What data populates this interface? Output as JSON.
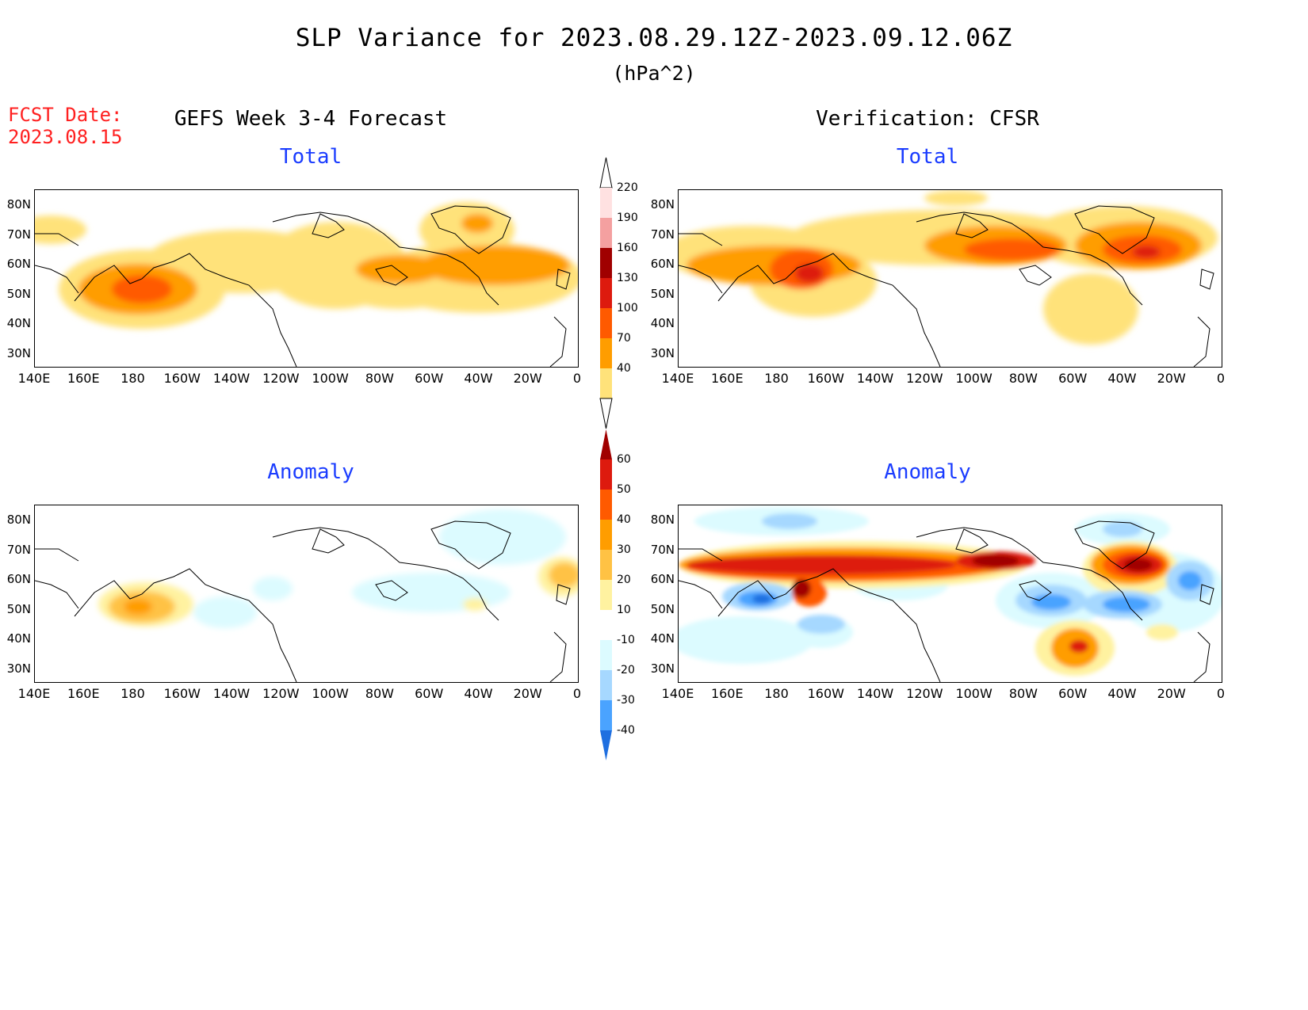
{
  "header": {
    "title": "SLP Variance for 2023.08.29.12Z-2023.09.12.06Z",
    "units": "(hPa^2)",
    "fcst_line1": "FCST Date:",
    "fcst_line2": "2023.08.15",
    "left_column_title": "GEFS Week 3-4 Forecast",
    "right_column_title": "Verification: CFSR"
  },
  "panels": {
    "forecast_total_title": "Total",
    "verification_total_title": "Total",
    "forecast_anomaly_title": "Anomaly",
    "verification_anomaly_title": "Anomaly"
  },
  "lat_labels": [
    "80N",
    "70N",
    "60N",
    "50N",
    "40N",
    "30N"
  ],
  "lon_labels": [
    "140E",
    "160E",
    "180",
    "160W",
    "140W",
    "120W",
    "100W",
    "80W",
    "60W",
    "40W",
    "20W",
    "0"
  ],
  "colorbars": {
    "total": {
      "labels": [
        "220",
        "190",
        "160",
        "130",
        "100",
        "70",
        "40"
      ],
      "colors": [
        "#ffe1e1",
        "#f4a0a0",
        "#a00000",
        "#dd1a0e",
        "#ff5a00",
        "#ff9d00",
        "#ffe27a"
      ]
    },
    "anomaly": {
      "labels": [
        "60",
        "50",
        "40",
        "30",
        "20",
        "10",
        "-10",
        "-20",
        "-30",
        "-40"
      ],
      "colors": [
        "#a00000",
        "#dd1a0e",
        "#ff5a00",
        "#ff9d00",
        "#ffc244",
        "#fff2a0",
        "#ffffff",
        "#dcfbff",
        "#a6d8ff",
        "#4aa3ff",
        "#1f6fe0"
      ]
    }
  },
  "colors": {
    "title_red": "#ff2020",
    "panel_title_blue": "#1a3cff"
  }
}
